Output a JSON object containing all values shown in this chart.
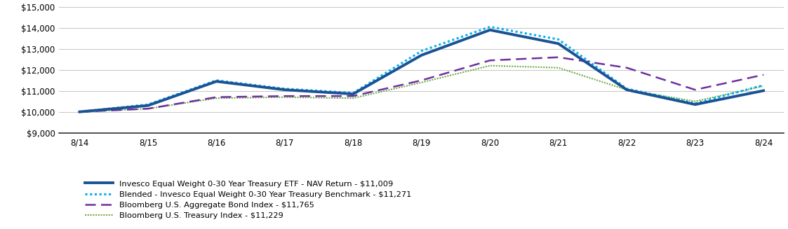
{
  "x_labels": [
    "8/14",
    "8/15",
    "8/16",
    "8/17",
    "8/18",
    "8/19",
    "8/20",
    "8/21",
    "8/22",
    "8/23",
    "8/24"
  ],
  "series": {
    "nav_return": {
      "label": "Invesco Equal Weight 0-30 Year Treasury ETF - NAV Return - $11,009",
      "color": "#1a5294",
      "values": [
        10000,
        10300,
        11450,
        11050,
        10850,
        12700,
        13900,
        13250,
        11050,
        10350,
        11009
      ],
      "linewidth": 2.8
    },
    "blended_benchmark": {
      "label": "Blended - Invesco Equal Weight 0-30 Year Treasury Benchmark - $11,271",
      "color": "#00b0f0",
      "values": [
        10000,
        10350,
        11500,
        11100,
        10900,
        12900,
        14050,
        13450,
        11100,
        10400,
        11271
      ],
      "linewidth": 2.2
    },
    "bloomberg_agg": {
      "label": "Bloomberg U.S. Aggregate Bond Index - $11,765",
      "color": "#7030a0",
      "values": [
        10000,
        10150,
        10700,
        10750,
        10750,
        11500,
        12450,
        12600,
        12100,
        11050,
        11765
      ],
      "linewidth": 1.8
    },
    "bloomberg_treasury": {
      "label": "Bloomberg U.S. Treasury Index - $11,229",
      "color": "#70ad47",
      "values": [
        10000,
        10150,
        10650,
        10700,
        10650,
        11400,
        12200,
        12100,
        11050,
        10500,
        11229
      ],
      "linewidth": 1.5
    }
  },
  "ylim": [
    9000,
    15000
  ],
  "yticks": [
    9000,
    10000,
    11000,
    12000,
    13000,
    14000,
    15000
  ],
  "background_color": "#ffffff",
  "grid_color": "#bbbbbb",
  "legend_fontsize": 8.2,
  "tick_fontsize": 8.5,
  "figsize": [
    11.23,
    3.27
  ],
  "dpi": 100
}
